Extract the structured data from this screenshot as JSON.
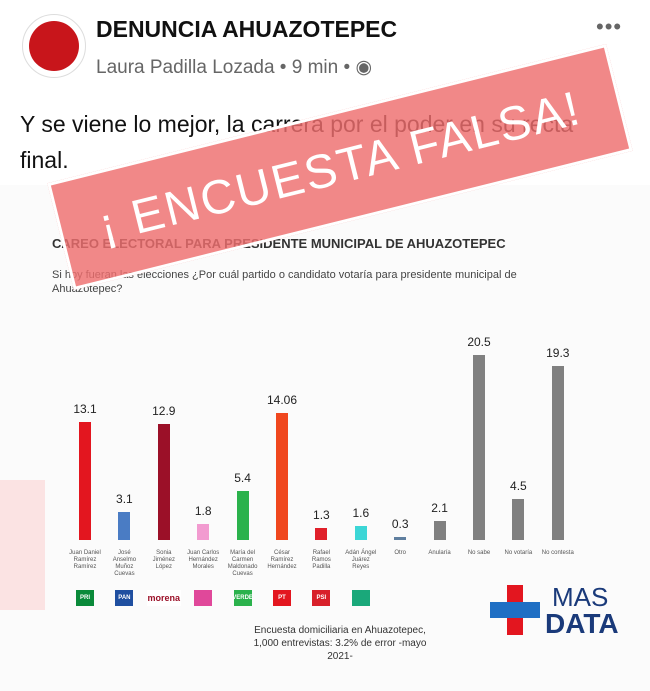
{
  "post": {
    "page_name": "DENUNCIA AHUAZOTEPEC",
    "author": "Laura Padilla Lozada",
    "time": "9 min",
    "text": "Y se viene lo mejor, la carrera por el poder en su recta final.",
    "stamp": "¡ ENCUESTA FALSA!"
  },
  "chart_data": {
    "type": "bar",
    "title": "CAREO ELECTORAL PARA PRESIDENTE MUNICIPAL DE AHUAZOTEPEC",
    "subtitle": "Si hoy fueran las elecciones ¿Por cuál partido o candidato votaría para presidente municipal de Ahuazotepec?",
    "categories": [
      "Juan Daniel Ramírez Ramírez",
      "José Anselmo Muñoz Cuevas",
      "Sonia Jiménez López",
      "Juan Carlos Hernández Morales",
      "María del Carmen Maldonado Cuevas",
      "César Ramírez Hernández",
      "Rafael Ramos Padilla",
      "Adán Ángel Juárez Reyes",
      "Otro",
      "Anularía",
      "No sabe",
      "No votaría",
      "No contesta"
    ],
    "values": [
      13.1,
      3.1,
      12.9,
      1.8,
      5.4,
      14.06,
      1.3,
      1.6,
      0.3,
      2.1,
      20.5,
      4.5,
      19.3
    ],
    "colors": [
      "#e3161f",
      "#4a7cc4",
      "#9b1028",
      "#f29bd0",
      "#2bb24c",
      "#f0471e",
      "#e0202a",
      "#3cd6d6",
      "#5f7f9f",
      "#808080",
      "#808080",
      "#808080",
      "#808080"
    ],
    "logos": [
      "PRI",
      "PAN",
      "morena",
      null,
      "VERDE",
      "PT",
      "PSI",
      null
    ],
    "logo_colors": [
      "#0a8a3a",
      "#1f4fa0",
      "#ffffff",
      "#e0489a",
      "#2bb24c",
      "#e3161f",
      "#d8202a",
      "#1aa87a"
    ],
    "footnote": [
      "Encuesta domiciliaria en Ahuazotepec,",
      "1,000 entrevistas: 3.2% de error -mayo 2021-"
    ],
    "brand": [
      "MAS",
      "DATA"
    ]
  }
}
